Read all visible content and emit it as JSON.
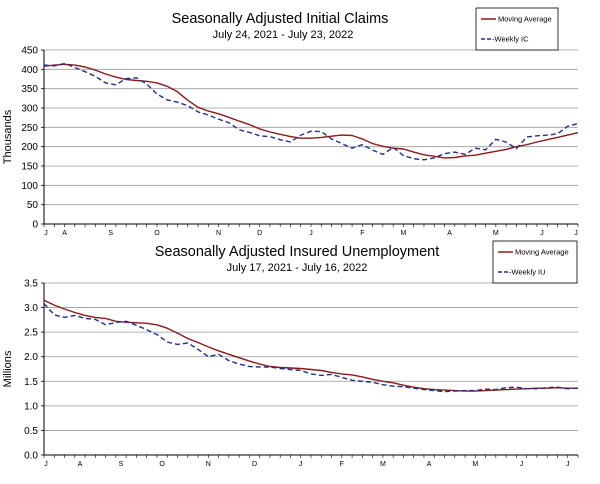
{
  "colors": {
    "moving_average": "#8B1A1A",
    "weekly": "#1F2F8F",
    "grid": "#9a9a9a"
  },
  "chart_data": [
    {
      "type": "line",
      "title": "Seasonally Adjusted Initial Claims",
      "subtitle": "July 24, 2021 - July 23, 2022",
      "xlabel": "",
      "ylabel": "Thousands",
      "ylim": [
        0,
        450
      ],
      "yticks": [
        0,
        50,
        100,
        150,
        200,
        250,
        300,
        350,
        400,
        450
      ],
      "ytick_labels": [
        "0",
        "50",
        "100",
        "150",
        "200",
        "250",
        "300",
        "350",
        "400",
        "450"
      ],
      "xlim": [
        0,
        52
      ],
      "x_months": [
        {
          "label": "J",
          "x": 0
        },
        {
          "label": "A",
          "x": 2
        },
        {
          "label": "S",
          "x": 6.5
        },
        {
          "label": "O",
          "x": 11
        },
        {
          "label": "N",
          "x": 17
        },
        {
          "label": "D",
          "x": 21
        },
        {
          "label": "J",
          "x": 26
        },
        {
          "label": "F",
          "x": 31
        },
        {
          "label": "M",
          "x": 35
        },
        {
          "label": "A",
          "x": 39.5
        },
        {
          "label": "M",
          "x": 44
        },
        {
          "label": "J",
          "x": 48.5
        },
        {
          "label": "J",
          "x": 52
        }
      ],
      "legend": [
        "Moving Average",
        "-Weekly IC"
      ],
      "legend_position": "top-right",
      "series": [
        {
          "name": "Moving Average",
          "style": "solid",
          "x": [
            0,
            1,
            2,
            3,
            4,
            5,
            6,
            7,
            8,
            9,
            10,
            11,
            12,
            13,
            14,
            15,
            16,
            17,
            18,
            19,
            20,
            21,
            22,
            23,
            24,
            25,
            26,
            27,
            28,
            29,
            30,
            31,
            32,
            33,
            34,
            35,
            36,
            37,
            38,
            39,
            40,
            41,
            42,
            43,
            44,
            45,
            46,
            47,
            48,
            49,
            50,
            51,
            52
          ],
          "values": [
            408,
            411,
            413,
            411,
            406,
            398,
            388,
            380,
            374,
            371,
            369,
            365,
            356,
            342,
            320,
            302,
            292,
            285,
            276,
            266,
            257,
            246,
            238,
            232,
            226,
            222,
            222,
            224,
            227,
            230,
            229,
            220,
            208,
            201,
            196,
            194,
            186,
            179,
            175,
            171,
            172,
            176,
            178,
            183,
            188,
            193,
            200,
            205,
            212,
            218,
            224,
            230,
            236
          ]
        },
        {
          "name": "Weekly IC",
          "style": "dashed",
          "x": [
            0,
            1,
            2,
            3,
            4,
            5,
            6,
            7,
            8,
            9,
            10,
            11,
            12,
            13,
            14,
            15,
            16,
            17,
            18,
            19,
            20,
            21,
            22,
            23,
            24,
            25,
            26,
            27,
            28,
            29,
            30,
            31,
            32,
            33,
            34,
            35,
            36,
            37,
            38,
            39,
            40,
            41,
            42,
            43,
            44,
            45,
            46,
            47,
            48,
            49,
            50,
            51,
            52
          ],
          "values": [
            411,
            409,
            415,
            405,
            394,
            382,
            365,
            360,
            376,
            378,
            362,
            336,
            321,
            315,
            306,
            290,
            282,
            271,
            262,
            244,
            237,
            228,
            226,
            218,
            212,
            230,
            240,
            239,
            220,
            208,
            196,
            205,
            191,
            180,
            198,
            177,
            169,
            166,
            171,
            182,
            186,
            180,
            196,
            192,
            219,
            212,
            195,
            225,
            228,
            230,
            233,
            253,
            260
          ]
        }
      ]
    },
    {
      "type": "line",
      "title": "Seasonally Adjusted Insured Unemployment",
      "subtitle": "July 17, 2021 - July 16, 2022",
      "xlabel": "",
      "ylabel": "Millions",
      "ylim": [
        0,
        3.5
      ],
      "yticks": [
        0,
        0.5,
        1.0,
        1.5,
        2.0,
        2.5,
        3.0,
        3.5
      ],
      "ytick_labels": [
        "0.0",
        "0.5",
        "1.0",
        "1.5",
        "2.0",
        "2.5",
        "3.0",
        "3.5"
      ],
      "xlim": [
        0,
        52
      ],
      "x_months": [
        {
          "label": "J",
          "x": 0
        },
        {
          "label": "A",
          "x": 3.5
        },
        {
          "label": "S",
          "x": 7.5
        },
        {
          "label": "O",
          "x": 11.5
        },
        {
          "label": "N",
          "x": 16
        },
        {
          "label": "D",
          "x": 20.5
        },
        {
          "label": "J",
          "x": 25
        },
        {
          "label": "F",
          "x": 29
        },
        {
          "label": "M",
          "x": 33
        },
        {
          "label": "A",
          "x": 37.5
        },
        {
          "label": "M",
          "x": 42
        },
        {
          "label": "J",
          "x": 46.5
        },
        {
          "label": "J",
          "x": 51
        }
      ],
      "legend": [
        "Moving Average",
        "-Weekly IU"
      ],
      "legend_position": "top-right",
      "series": [
        {
          "name": "Moving Average",
          "style": "solid",
          "x": [
            0,
            1,
            2,
            3,
            4,
            5,
            6,
            7,
            8,
            9,
            10,
            11,
            12,
            13,
            14,
            15,
            16,
            17,
            18,
            19,
            20,
            21,
            22,
            23,
            24,
            25,
            26,
            27,
            28,
            29,
            30,
            31,
            32,
            33,
            34,
            35,
            36,
            37,
            38,
            39,
            40,
            41,
            42,
            43,
            44,
            45,
            46,
            47,
            48,
            49,
            50,
            51,
            52
          ],
          "values": [
            3.15,
            3.05,
            2.97,
            2.9,
            2.84,
            2.8,
            2.78,
            2.72,
            2.7,
            2.69,
            2.68,
            2.65,
            2.58,
            2.48,
            2.37,
            2.29,
            2.2,
            2.12,
            2.05,
            1.98,
            1.91,
            1.85,
            1.8,
            1.78,
            1.77,
            1.76,
            1.74,
            1.72,
            1.68,
            1.65,
            1.63,
            1.59,
            1.54,
            1.5,
            1.47,
            1.42,
            1.38,
            1.35,
            1.33,
            1.32,
            1.31,
            1.3,
            1.3,
            1.31,
            1.32,
            1.33,
            1.34,
            1.35,
            1.36,
            1.36,
            1.37,
            1.36,
            1.36
          ]
        },
        {
          "name": "Weekly IU",
          "style": "dashed",
          "x": [
            0,
            1,
            2,
            3,
            4,
            5,
            6,
            7,
            8,
            9,
            10,
            11,
            12,
            13,
            14,
            15,
            16,
            17,
            18,
            19,
            20,
            21,
            22,
            23,
            24,
            25,
            26,
            27,
            28,
            29,
            30,
            31,
            32,
            33,
            34,
            35,
            36,
            37,
            38,
            39,
            40,
            41,
            42,
            43,
            44,
            45,
            46,
            47,
            48,
            49,
            50,
            51,
            52
          ],
          "values": [
            3.08,
            2.85,
            2.8,
            2.84,
            2.78,
            2.76,
            2.65,
            2.7,
            2.72,
            2.64,
            2.55,
            2.45,
            2.3,
            2.25,
            2.28,
            2.15,
            2.0,
            2.05,
            1.92,
            1.85,
            1.8,
            1.79,
            1.79,
            1.76,
            1.74,
            1.72,
            1.65,
            1.62,
            1.64,
            1.58,
            1.52,
            1.5,
            1.48,
            1.43,
            1.4,
            1.39,
            1.36,
            1.33,
            1.31,
            1.29,
            1.3,
            1.31,
            1.31,
            1.34,
            1.33,
            1.37,
            1.38,
            1.35,
            1.35,
            1.37,
            1.38,
            1.35,
            1.36
          ]
        }
      ]
    }
  ]
}
